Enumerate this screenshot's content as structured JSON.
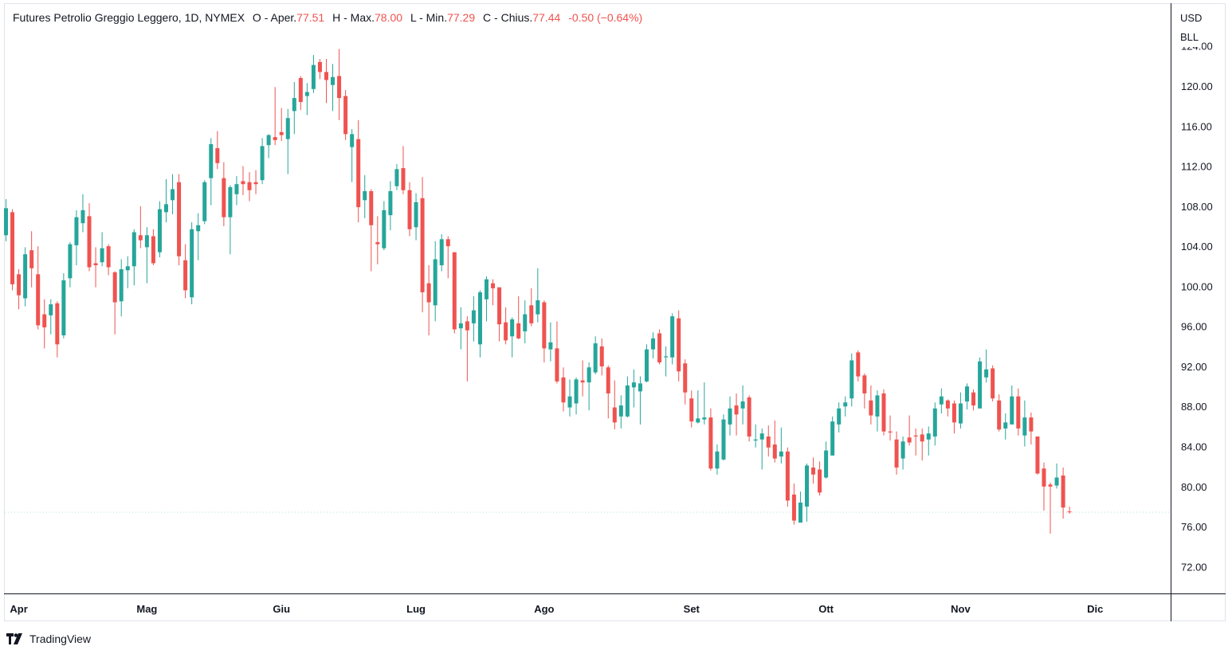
{
  "header": {
    "title": "Futures Petrolio Greggio Leggero, 1D, NYMEX",
    "open_label": "O - Aper.",
    "open": "77.51",
    "high_label": "H - Max.",
    "high": "78.00",
    "low_label": "L - Min.",
    "low": "77.29",
    "close_label": "C - Chius.",
    "close": "77.44",
    "change": "-0.50 (−0.64%)"
  },
  "price_axis": {
    "currency": "USD",
    "unit": "BLL"
  },
  "footer": {
    "brand": "TradingView"
  },
  "colors": {
    "up": "#26a69a",
    "down": "#ef5350",
    "last_price_line": "#b2dfdb"
  },
  "chart_data": {
    "type": "candlestick",
    "title": "Futures Petrolio Greggio Leggero, 1D, NYMEX",
    "ylabel": "USD/BLL",
    "ylim": [
      68.6,
      128.0
    ],
    "y_ticks": [
      "124.00",
      "120.00",
      "116.00",
      "112.00",
      "108.00",
      "104.00",
      "100.00",
      "96.00",
      "92.00",
      "88.00",
      "84.00",
      "80.00",
      "76.00",
      "72.00"
    ],
    "x_ticks": [
      {
        "label": "Apr",
        "index": 2
      },
      {
        "label": "Mag",
        "index": 22
      },
      {
        "label": "Giu",
        "index": 43
      },
      {
        "label": "Lug",
        "index": 64
      },
      {
        "label": "Ago",
        "index": 84
      },
      {
        "label": "Set",
        "index": 107
      },
      {
        "label": "Ott",
        "index": 128
      },
      {
        "label": "Nov",
        "index": 149
      },
      {
        "label": "Dic",
        "index": 170
      }
    ],
    "last_price": 77.44,
    "ohlc": [
      [
        105.1,
        108.7,
        104.5,
        107.8
      ],
      [
        107.4,
        107.7,
        99.6,
        100.2
      ],
      [
        101.2,
        101.7,
        97.7,
        99.1
      ],
      [
        98.8,
        103.9,
        98.0,
        103.2
      ],
      [
        103.6,
        105.5,
        99.9,
        101.8
      ],
      [
        101.2,
        104.0,
        95.7,
        96.1
      ],
      [
        97.2,
        98.7,
        93.8,
        95.9
      ],
      [
        97.1,
        98.7,
        95.2,
        98.2
      ],
      [
        98.3,
        98.5,
        92.9,
        94.2
      ],
      [
        95.1,
        101.3,
        94.8,
        100.6
      ],
      [
        100.8,
        104.4,
        99.9,
        104.2
      ],
      [
        104.1,
        107.6,
        102.1,
        106.9
      ],
      [
        106.3,
        109.2,
        105.4,
        107.6
      ],
      [
        107.0,
        108.3,
        101.5,
        101.9
      ],
      [
        102.3,
        103.9,
        99.9,
        102.1
      ],
      [
        102.4,
        105.4,
        102.0,
        103.8
      ],
      [
        104.0,
        104.2,
        101.1,
        101.9
      ],
      [
        101.4,
        101.5,
        95.2,
        98.4
      ],
      [
        98.5,
        102.7,
        97.0,
        101.7
      ],
      [
        101.6,
        103.0,
        99.8,
        102.0
      ],
      [
        102.0,
        105.7,
        100.1,
        105.4
      ],
      [
        105.1,
        108.0,
        103.8,
        104.6
      ],
      [
        103.9,
        105.9,
        100.3,
        105.1
      ],
      [
        105.0,
        105.7,
        102.1,
        102.3
      ],
      [
        103.4,
        108.5,
        102.9,
        107.7
      ],
      [
        107.4,
        110.7,
        106.4,
        108.2
      ],
      [
        108.6,
        111.2,
        107.2,
        109.7
      ],
      [
        110.4,
        111.2,
        102.1,
        103.0
      ],
      [
        102.6,
        104.2,
        98.8,
        99.6
      ],
      [
        98.9,
        106.4,
        98.2,
        105.7
      ],
      [
        105.5,
        107.3,
        102.6,
        106.1
      ],
      [
        106.5,
        110.6,
        106.2,
        110.4
      ],
      [
        110.8,
        114.8,
        108.1,
        114.2
      ],
      [
        113.8,
        115.5,
        111.7,
        112.3
      ],
      [
        110.8,
        112.4,
        106.0,
        106.9
      ],
      [
        106.9,
        110.1,
        103.2,
        109.9
      ],
      [
        109.2,
        111.0,
        108.1,
        110.2
      ],
      [
        110.5,
        112.0,
        109.1,
        110.2
      ],
      [
        110.4,
        111.4,
        108.5,
        109.6
      ],
      [
        110.4,
        111.6,
        109.2,
        110.2
      ],
      [
        110.6,
        114.8,
        110.2,
        114.0
      ],
      [
        114.1,
        115.2,
        112.8,
        115.1
      ],
      [
        114.9,
        119.9,
        114.1,
        114.6
      ],
      [
        115.4,
        117.8,
        114.5,
        115.1
      ],
      [
        114.7,
        117.7,
        111.2,
        116.8
      ],
      [
        117.5,
        120.4,
        115.2,
        118.8
      ],
      [
        120.8,
        121.0,
        117.6,
        118.4
      ],
      [
        119.0,
        120.3,
        117.1,
        119.4
      ],
      [
        119.7,
        123.1,
        119.3,
        122.1
      ],
      [
        122.4,
        122.7,
        120.7,
        121.4
      ],
      [
        121.4,
        122.7,
        118.3,
        120.6
      ],
      [
        120.1,
        122.2,
        117.5,
        120.9
      ],
      [
        121.0,
        123.7,
        116.6,
        118.8
      ],
      [
        119.0,
        119.6,
        114.6,
        115.2
      ],
      [
        113.9,
        115.7,
        110.4,
        115.2
      ],
      [
        114.7,
        116.6,
        106.4,
        107.9
      ],
      [
        108.6,
        111.1,
        106.8,
        109.5
      ],
      [
        109.5,
        109.7,
        101.5,
        106.1
      ],
      [
        104.4,
        107.0,
        102.2,
        104.2
      ],
      [
        103.8,
        108.5,
        103.6,
        107.6
      ],
      [
        107.1,
        110.5,
        105.6,
        109.5
      ],
      [
        110.0,
        112.2,
        109.6,
        111.7
      ],
      [
        111.8,
        114.0,
        109.2,
        109.6
      ],
      [
        109.6,
        110.4,
        105.0,
        105.7
      ],
      [
        105.9,
        109.3,
        104.6,
        108.4
      ],
      [
        108.8,
        110.9,
        97.4,
        99.4
      ],
      [
        100.3,
        102.1,
        95.1,
        98.4
      ],
      [
        98.1,
        104.5,
        96.5,
        102.7
      ],
      [
        102.1,
        105.2,
        101.5,
        104.7
      ],
      [
        104.7,
        105.0,
        100.8,
        104.0
      ],
      [
        103.4,
        103.4,
        95.3,
        95.7
      ],
      [
        95.8,
        97.9,
        93.7,
        96.3
      ],
      [
        96.5,
        97.0,
        90.5,
        95.6
      ],
      [
        96.3,
        99.0,
        94.5,
        97.6
      ],
      [
        94.2,
        99.6,
        92.9,
        99.4
      ],
      [
        98.7,
        101.0,
        96.5,
        100.7
      ],
      [
        100.3,
        100.7,
        98.1,
        99.8
      ],
      [
        99.9,
        99.9,
        94.5,
        96.2
      ],
      [
        96.4,
        97.9,
        94.2,
        94.6
      ],
      [
        95.0,
        96.9,
        92.9,
        96.7
      ],
      [
        96.3,
        99.0,
        94.7,
        94.8
      ],
      [
        95.5,
        98.6,
        94.3,
        97.2
      ],
      [
        98.1,
        99.8,
        96.0,
        96.3
      ],
      [
        97.2,
        101.8,
        96.4,
        98.6
      ],
      [
        98.4,
        98.6,
        92.4,
        93.8
      ],
      [
        93.7,
        96.4,
        92.5,
        94.4
      ],
      [
        93.8,
        96.5,
        90.3,
        90.5
      ],
      [
        90.9,
        91.9,
        87.5,
        88.4
      ],
      [
        87.9,
        90.7,
        87.0,
        89.0
      ],
      [
        88.3,
        90.9,
        87.2,
        90.7
      ],
      [
        90.6,
        92.6,
        89.0,
        90.4
      ],
      [
        90.4,
        92.4,
        87.6,
        91.9
      ],
      [
        91.4,
        95.0,
        91.2,
        94.3
      ],
      [
        94.0,
        94.8,
        91.1,
        92.0
      ],
      [
        91.9,
        92.1,
        86.8,
        89.3
      ],
      [
        87.9,
        90.6,
        85.7,
        86.4
      ],
      [
        87.0,
        89.1,
        85.8,
        88.1
      ],
      [
        87.0,
        91.0,
        86.9,
        90.1
      ],
      [
        89.9,
        91.7,
        87.9,
        90.4
      ],
      [
        89.5,
        91.0,
        86.2,
        90.3
      ],
      [
        90.5,
        94.2,
        90.4,
        93.7
      ],
      [
        93.7,
        95.4,
        92.8,
        94.8
      ],
      [
        95.3,
        95.7,
        92.2,
        92.4
      ],
      [
        92.9,
        94.0,
        91.0,
        93.0
      ],
      [
        92.9,
        97.3,
        92.2,
        97.0
      ],
      [
        96.8,
        97.6,
        90.5,
        91.5
      ],
      [
        92.3,
        92.7,
        88.2,
        89.4
      ],
      [
        88.8,
        89.6,
        85.9,
        86.5
      ],
      [
        86.4,
        89.6,
        86.3,
        86.8
      ],
      [
        86.7,
        90.4,
        86.2,
        86.9
      ],
      [
        86.9,
        87.8,
        81.6,
        81.8
      ],
      [
        81.8,
        84.2,
        81.2,
        83.5
      ],
      [
        82.7,
        87.2,
        82.6,
        86.7
      ],
      [
        86.2,
        89.0,
        85.1,
        87.8
      ],
      [
        88.1,
        89.3,
        85.1,
        87.2
      ],
      [
        87.8,
        90.1,
        86.2,
        88.5
      ],
      [
        88.9,
        89.1,
        84.5,
        85.0
      ],
      [
        84.6,
        86.2,
        83.9,
        84.7
      ],
      [
        84.7,
        85.8,
        81.7,
        85.3
      ],
      [
        85.0,
        86.1,
        83.0,
        83.9
      ],
      [
        84.2,
        86.6,
        82.4,
        82.8
      ],
      [
        83.0,
        85.9,
        82.3,
        83.5
      ],
      [
        83.5,
        83.9,
        78.0,
        78.6
      ],
      [
        79.2,
        80.3,
        76.2,
        76.6
      ],
      [
        76.4,
        79.5,
        76.4,
        78.4
      ],
      [
        78.0,
        82.3,
        76.5,
        82.1
      ],
      [
        81.9,
        82.9,
        80.3,
        81.2
      ],
      [
        81.7,
        82.5,
        79.1,
        79.4
      ],
      [
        80.9,
        84.5,
        80.8,
        83.6
      ],
      [
        83.1,
        87.0,
        83.1,
        86.5
      ],
      [
        86.2,
        88.4,
        85.4,
        87.8
      ],
      [
        88.0,
        89.0,
        87.0,
        88.4
      ],
      [
        88.8,
        93.3,
        88.0,
        92.6
      ],
      [
        93.4,
        93.6,
        90.5,
        91.0
      ],
      [
        91.1,
        91.3,
        87.8,
        89.3
      ],
      [
        88.6,
        90.1,
        86.2,
        87.1
      ],
      [
        87.0,
        89.6,
        85.5,
        89.1
      ],
      [
        89.3,
        89.7,
        85.1,
        85.5
      ],
      [
        85.5,
        87.1,
        84.6,
        85.4
      ],
      [
        84.7,
        85.5,
        81.2,
        81.9
      ],
      [
        82.8,
        85.0,
        81.7,
        84.5
      ],
      [
        84.9,
        87.1,
        84.1,
        84.4
      ],
      [
        85.1,
        85.8,
        83.1,
        85.0
      ],
      [
        85.2,
        85.8,
        82.6,
        84.5
      ],
      [
        84.7,
        86.0,
        83.1,
        85.3
      ],
      [
        85.0,
        88.4,
        84.1,
        87.8
      ],
      [
        88.2,
        89.8,
        87.3,
        89.0
      ],
      [
        88.6,
        88.7,
        87.0,
        87.8
      ],
      [
        88.3,
        88.6,
        85.3,
        86.4
      ],
      [
        86.3,
        89.4,
        85.8,
        88.3
      ],
      [
        88.5,
        90.3,
        87.7,
        90.0
      ],
      [
        89.4,
        89.7,
        87.6,
        88.1
      ],
      [
        87.8,
        92.9,
        87.8,
        92.5
      ],
      [
        90.9,
        93.7,
        90.4,
        91.7
      ],
      [
        91.8,
        92.1,
        88.5,
        88.8
      ],
      [
        88.6,
        89.2,
        85.5,
        85.7
      ],
      [
        85.8,
        87.3,
        84.7,
        86.4
      ],
      [
        86.2,
        90.1,
        86.2,
        89.0
      ],
      [
        89.0,
        89.8,
        85.1,
        85.8
      ],
      [
        85.1,
        88.6,
        84.0,
        86.9
      ],
      [
        86.9,
        87.4,
        84.2,
        85.5
      ],
      [
        85.0,
        85.0,
        81.2,
        81.3
      ],
      [
        81.8,
        82.4,
        77.6,
        80.0
      ],
      [
        80.2,
        80.4,
        75.3,
        80.0
      ],
      [
        80.1,
        82.3,
        79.8,
        80.9
      ],
      [
        81.1,
        81.9,
        76.8,
        77.9
      ],
      [
        77.51,
        78.0,
        77.29,
        77.44
      ]
    ]
  }
}
